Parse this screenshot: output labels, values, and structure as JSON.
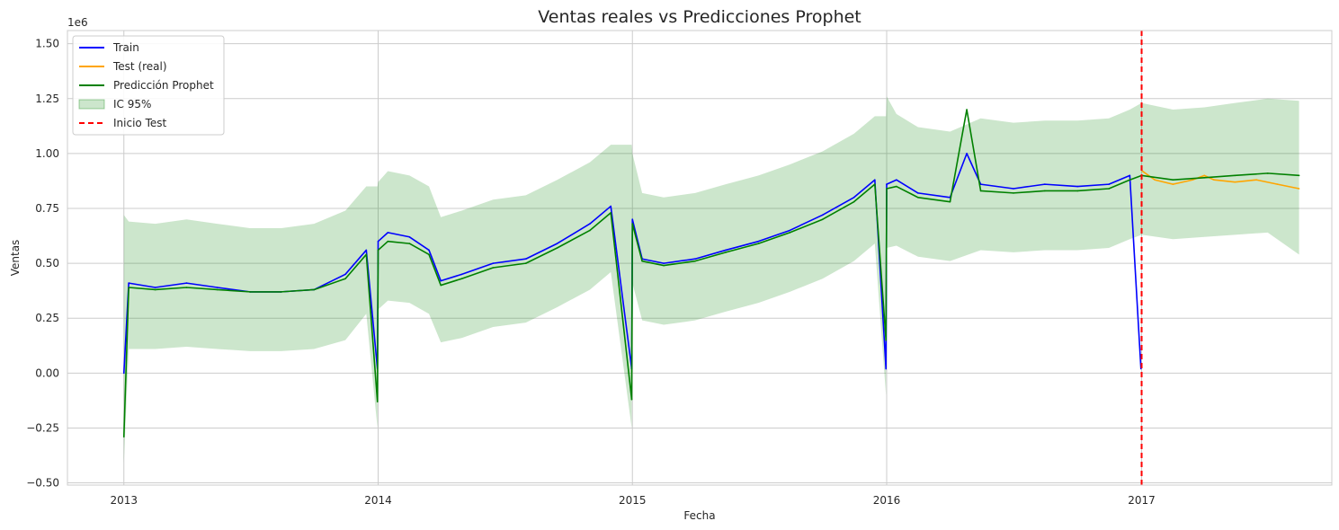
{
  "chart_data": {
    "type": "line",
    "title": "Ventas reales vs Predicciones Prophet",
    "xlabel": "Fecha",
    "ylabel": "Ventas",
    "y_offset_label": "1e6",
    "y_scale": 1000000,
    "xlim": [
      "2012-10-12",
      "2017-10-01"
    ],
    "ylim": [
      -510000,
      1560000
    ],
    "grid": true,
    "legend_position": "upper-left",
    "x_ticks": [
      {
        "date": "2013-01-01",
        "label": "2013"
      },
      {
        "date": "2014-01-01",
        "label": "2014"
      },
      {
        "date": "2015-01-01",
        "label": "2015"
      },
      {
        "date": "2016-01-01",
        "label": "2016"
      },
      {
        "date": "2017-01-01",
        "label": "2017"
      }
    ],
    "y_ticks": [
      {
        "value": -500000,
        "label": "−0.50"
      },
      {
        "value": -250000,
        "label": "−0.25"
      },
      {
        "value": 0,
        "label": "0.00"
      },
      {
        "value": 250000,
        "label": "0.25"
      },
      {
        "value": 500000,
        "label": "0.50"
      },
      {
        "value": 750000,
        "label": "0.75"
      },
      {
        "value": 1000000,
        "label": "1.00"
      },
      {
        "value": 1250000,
        "label": "1.25"
      },
      {
        "value": 1500000,
        "label": "1.50"
      }
    ],
    "series": [
      {
        "name": "Train",
        "kind": "line",
        "color": "#0000ff",
        "x": [
          "2013-01-01",
          "2013-01-08",
          "2013-02-15",
          "2013-04-01",
          "2013-05-15",
          "2013-07-01",
          "2013-08-15",
          "2013-10-01",
          "2013-11-15",
          "2013-12-15",
          "2013-12-31",
          "2014-01-01",
          "2014-01-15",
          "2014-02-15",
          "2014-03-15",
          "2014-04-01",
          "2014-05-01",
          "2014-06-15",
          "2014-08-01",
          "2014-09-15",
          "2014-11-01",
          "2014-12-01",
          "2014-12-31",
          "2015-01-01",
          "2015-01-15",
          "2015-02-15",
          "2015-04-01",
          "2015-05-15",
          "2015-07-01",
          "2015-08-15",
          "2015-10-01",
          "2015-11-15",
          "2015-12-15",
          "2015-12-31",
          "2016-01-01",
          "2016-01-15",
          "2016-02-15",
          "2016-04-01",
          "2016-04-25",
          "2016-05-15",
          "2016-07-01",
          "2016-08-15",
          "2016-10-01",
          "2016-11-15",
          "2016-12-15",
          "2016-12-31"
        ],
        "y": [
          0,
          410000,
          390000,
          410000,
          390000,
          370000,
          370000,
          380000,
          450000,
          560000,
          20000,
          600000,
          640000,
          620000,
          560000,
          420000,
          450000,
          500000,
          520000,
          590000,
          680000,
          760000,
          20000,
          700000,
          520000,
          500000,
          520000,
          560000,
          600000,
          650000,
          720000,
          800000,
          880000,
          20000,
          860000,
          880000,
          820000,
          800000,
          1000000,
          860000,
          840000,
          860000,
          850000,
          860000,
          900000,
          20000
        ]
      },
      {
        "name": "Test (real)",
        "kind": "line",
        "color": "#ffa500",
        "x": [
          "2017-01-02",
          "2017-01-20",
          "2017-02-15",
          "2017-03-15",
          "2017-04-01",
          "2017-04-15",
          "2017-05-15",
          "2017-06-15",
          "2017-07-15",
          "2017-08-15"
        ],
        "y": [
          920000,
          880000,
          860000,
          880000,
          900000,
          880000,
          870000,
          880000,
          860000,
          840000
        ]
      },
      {
        "name": "Predicción Prophet",
        "kind": "line",
        "color": "#008000",
        "x": [
          "2013-01-01",
          "2013-01-08",
          "2013-02-15",
          "2013-04-01",
          "2013-05-15",
          "2013-07-01",
          "2013-08-15",
          "2013-10-01",
          "2013-11-15",
          "2013-12-15",
          "2013-12-31",
          "2014-01-01",
          "2014-01-15",
          "2014-02-15",
          "2014-03-15",
          "2014-04-01",
          "2014-05-01",
          "2014-06-15",
          "2014-08-01",
          "2014-09-15",
          "2014-11-01",
          "2014-12-01",
          "2014-12-31",
          "2015-01-01",
          "2015-01-15",
          "2015-02-15",
          "2015-04-01",
          "2015-05-15",
          "2015-07-01",
          "2015-08-15",
          "2015-10-01",
          "2015-11-15",
          "2015-12-15",
          "2015-12-31",
          "2016-01-01",
          "2016-01-15",
          "2016-02-15",
          "2016-04-01",
          "2016-04-25",
          "2016-05-15",
          "2016-07-01",
          "2016-08-15",
          "2016-10-01",
          "2016-11-15",
          "2016-12-15",
          "2017-01-01",
          "2017-02-15",
          "2017-04-01",
          "2017-05-15",
          "2017-07-01",
          "2017-08-15"
        ],
        "y": [
          -290000,
          390000,
          380000,
          390000,
          380000,
          370000,
          370000,
          380000,
          430000,
          540000,
          -130000,
          560000,
          600000,
          590000,
          540000,
          400000,
          430000,
          480000,
          500000,
          570000,
          650000,
          730000,
          -120000,
          680000,
          510000,
          490000,
          510000,
          550000,
          590000,
          640000,
          700000,
          780000,
          860000,
          150000,
          840000,
          850000,
          800000,
          780000,
          1200000,
          830000,
          820000,
          830000,
          830000,
          840000,
          880000,
          900000,
          880000,
          890000,
          900000,
          910000,
          900000
        ]
      },
      {
        "name": "IC 95%",
        "kind": "band",
        "color": "#008000",
        "x": [
          "2013-01-01",
          "2013-01-08",
          "2013-02-15",
          "2013-04-01",
          "2013-05-15",
          "2013-07-01",
          "2013-08-15",
          "2013-10-01",
          "2013-11-15",
          "2013-12-15",
          "2013-12-31",
          "2014-01-01",
          "2014-01-15",
          "2014-02-15",
          "2014-03-15",
          "2014-04-01",
          "2014-05-01",
          "2014-06-15",
          "2014-08-01",
          "2014-09-15",
          "2014-11-01",
          "2014-12-01",
          "2014-12-31",
          "2015-01-01",
          "2015-01-15",
          "2015-02-15",
          "2015-04-01",
          "2015-05-15",
          "2015-07-01",
          "2015-08-15",
          "2015-10-01",
          "2015-11-15",
          "2015-12-15",
          "2015-12-31",
          "2016-01-01",
          "2016-01-15",
          "2016-02-15",
          "2016-04-01",
          "2016-05-15",
          "2016-07-01",
          "2016-08-15",
          "2016-10-01",
          "2016-11-15",
          "2016-12-15",
          "2017-01-01",
          "2017-02-15",
          "2017-04-01",
          "2017-05-15",
          "2017-07-01",
          "2017-08-15"
        ],
        "lower": [
          -410000,
          110000,
          110000,
          120000,
          110000,
          100000,
          100000,
          110000,
          150000,
          270000,
          -250000,
          290000,
          330000,
          320000,
          270000,
          140000,
          160000,
          210000,
          230000,
          300000,
          380000,
          460000,
          -250000,
          410000,
          240000,
          220000,
          240000,
          280000,
          320000,
          370000,
          430000,
          510000,
          590000,
          -100000,
          570000,
          580000,
          530000,
          510000,
          560000,
          550000,
          560000,
          560000,
          570000,
          610000,
          630000,
          610000,
          620000,
          630000,
          640000,
          540000
        ],
        "upper": [
          720000,
          690000,
          680000,
          700000,
          680000,
          660000,
          660000,
          680000,
          740000,
          850000,
          850000,
          870000,
          920000,
          900000,
          850000,
          710000,
          740000,
          790000,
          810000,
          880000,
          960000,
          1040000,
          1040000,
          1000000,
          820000,
          800000,
          820000,
          860000,
          900000,
          950000,
          1010000,
          1090000,
          1170000,
          1170000,
          1260000,
          1180000,
          1120000,
          1100000,
          1160000,
          1140000,
          1150000,
          1150000,
          1160000,
          1200000,
          1230000,
          1200000,
          1210000,
          1230000,
          1250000,
          1240000
        ]
      },
      {
        "name": "Inicio Test",
        "kind": "vline",
        "color": "#ff0000",
        "x": "2017-01-01"
      }
    ]
  }
}
